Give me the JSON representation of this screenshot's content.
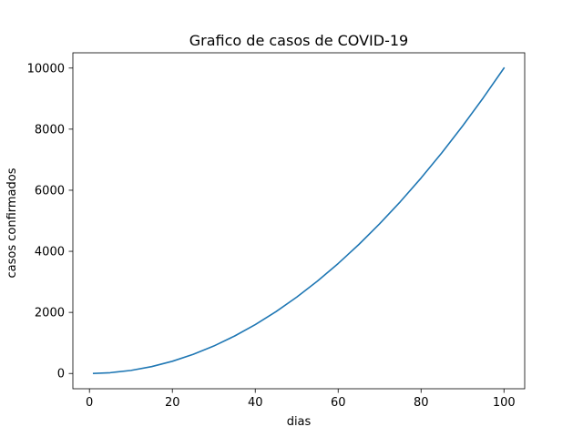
{
  "chart_data": {
    "type": "line",
    "title": "Grafico de casos de COVID-19",
    "xlabel": "dias",
    "ylabel": "casos confirmados",
    "xlim": [
      -4,
      105
    ],
    "ylim": [
      -500,
      10500
    ],
    "xticks": [
      0,
      20,
      40,
      60,
      80,
      100
    ],
    "yticks": [
      0,
      2000,
      4000,
      6000,
      8000,
      10000
    ],
    "xtick_labels": [
      "0",
      "20",
      "40",
      "60",
      "80",
      "100"
    ],
    "ytick_labels": [
      "0",
      "2000",
      "4000",
      "6000",
      "8000",
      "10000"
    ],
    "grid": false,
    "legend": "none",
    "series": [
      {
        "color": "#1f77b4",
        "x": [
          1,
          5,
          10,
          15,
          20,
          25,
          30,
          35,
          40,
          45,
          50,
          55,
          60,
          65,
          70,
          75,
          80,
          85,
          90,
          95,
          100
        ],
        "y": [
          1,
          25,
          100,
          225,
          400,
          625,
          900,
          1225,
          1600,
          2025,
          2500,
          3025,
          3600,
          4225,
          4900,
          5625,
          6400,
          7225,
          8100,
          9025,
          10000
        ]
      }
    ]
  }
}
